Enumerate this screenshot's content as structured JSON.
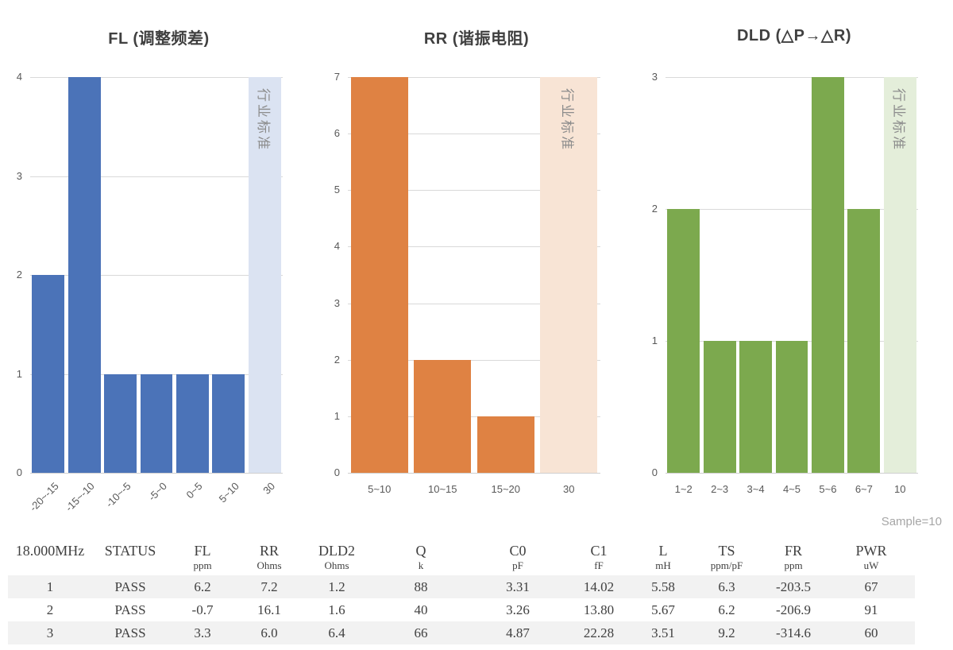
{
  "chart_data": [
    {
      "type": "bar",
      "title": "FL (调整频差)",
      "categories": [
        "-20~-15",
        "-15~-10",
        "-10~-5",
        "-5~0",
        "0~5",
        "5~10",
        "30"
      ],
      "values": [
        2,
        4,
        1,
        1,
        1,
        1,
        4
      ],
      "ylim": [
        0,
        4
      ],
      "yticks": [
        0,
        1,
        2,
        3,
        4
      ],
      "bar_color": "#4B73B8",
      "standard_index": 6,
      "standard_color": "#DBE3F2",
      "standard_label": "行业标准",
      "rotated_x_labels": true,
      "grid": true,
      "legend": "none"
    },
    {
      "type": "bar",
      "title": "RR (谐振电阻)",
      "categories": [
        "5~10",
        "10~15",
        "15~20",
        "30"
      ],
      "values": [
        7,
        2,
        1,
        7
      ],
      "ylim": [
        0,
        7
      ],
      "yticks": [
        0,
        1,
        2,
        3,
        4,
        5,
        6,
        7
      ],
      "bar_color": "#DF8243",
      "standard_index": 3,
      "standard_color": "#F8E4D5",
      "standard_label": "行业标准",
      "rotated_x_labels": false,
      "grid": true,
      "legend": "none"
    },
    {
      "type": "bar",
      "title": "DLD (△P→△R)",
      "categories": [
        "1~2",
        "2~3",
        "3~4",
        "4~5",
        "5~6",
        "6~7",
        "10"
      ],
      "values": [
        2,
        1,
        1,
        1,
        3,
        2,
        3
      ],
      "ylim": [
        0,
        3
      ],
      "yticks": [
        0,
        1,
        2,
        3
      ],
      "bar_color": "#7CA94E",
      "standard_index": 6,
      "standard_color": "#E4EEDA",
      "standard_label": "行业标准",
      "rotated_x_labels": false,
      "grid": true,
      "legend": "none"
    }
  ],
  "table": {
    "sample_note": "Sample=10",
    "headers": [
      "18.000MHz",
      "STATUS",
      "FL",
      "RR",
      "DLD2",
      "Q",
      "C0",
      "C1",
      "L",
      "TS",
      "FR",
      "PWR"
    ],
    "units": [
      "",
      "",
      "ppm",
      "Ohms",
      "Ohms",
      "k",
      "pF",
      "fF",
      "mH",
      "ppm/pF",
      "ppm",
      "uW"
    ],
    "rows": [
      [
        "1",
        "PASS",
        "6.2",
        "7.2",
        "1.2",
        "88",
        "3.31",
        "14.02",
        "5.58",
        "6.3",
        "-203.5",
        "67"
      ],
      [
        "2",
        "PASS",
        "-0.7",
        "16.1",
        "1.6",
        "40",
        "3.26",
        "13.80",
        "5.67",
        "6.2",
        "-206.9",
        "91"
      ],
      [
        "3",
        "PASS",
        "3.3",
        "6.0",
        "6.4",
        "66",
        "4.87",
        "22.28",
        "3.51",
        "9.2",
        "-314.6",
        "60"
      ]
    ]
  },
  "colors": {
    "grid": "#D9D9D9",
    "axis_text": "#595959",
    "title_text": "#404040",
    "standard_label_text": "#8C8C8C",
    "sample_note_text": "#A6A6A6",
    "zebra_row": "#F2F2F2"
  }
}
